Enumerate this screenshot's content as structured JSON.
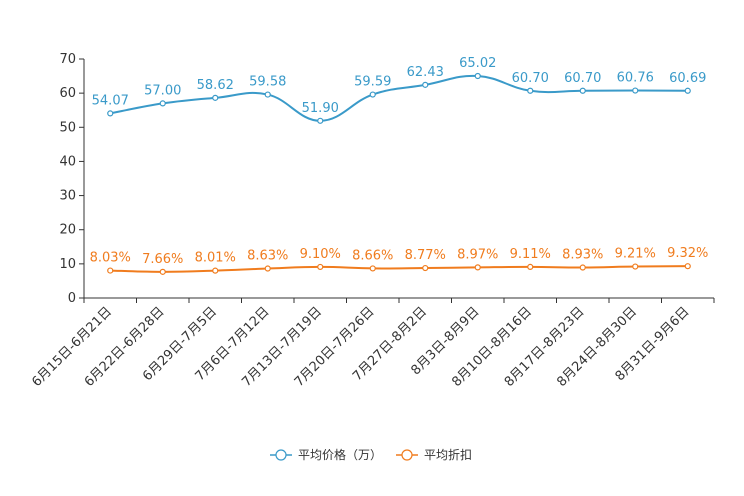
{
  "chart_data": {
    "type": "line",
    "title": "",
    "xlabel": "",
    "ylabel": "",
    "ylim": [
      0,
      70
    ],
    "yticks": [
      0,
      10,
      20,
      30,
      40,
      50,
      60,
      70
    ],
    "legend_position": "bottom-center",
    "grid": false,
    "categories": [
      "6月15日-6月21日",
      "6月22日-6月28日",
      "6月29日-7月5日",
      "7月6日-7月12日",
      "7月13日-7月19日",
      "7月20日-7月26日",
      "7月27日-8月2日",
      "8月3日-8月9日",
      "8月10日-8月16日",
      "8月17日-8月23日",
      "8月24日-8月30日",
      "8月31日-9月6日"
    ],
    "series": [
      {
        "name": "平均价格（万）",
        "color": "#3a9ac9",
        "values": [
          54.07,
          57.0,
          58.62,
          59.58,
          51.9,
          59.59,
          62.43,
          65.02,
          60.7,
          60.7,
          60.76,
          60.69
        ],
        "labels": [
          "54.07",
          "57.00",
          "58.62",
          "59.58",
          "51.90",
          "59.59",
          "62.43",
          "65.02",
          "60.70",
          "60.70",
          "60.76",
          "60.69"
        ]
      },
      {
        "name": "平均折扣",
        "color": "#f07c1e",
        "values": [
          8.03,
          7.66,
          8.01,
          8.63,
          9.1,
          8.66,
          8.77,
          8.97,
          9.11,
          8.93,
          9.21,
          9.32
        ],
        "labels": [
          "8.03%",
          "7.66%",
          "8.01%",
          "8.63%",
          "9.10%",
          "8.66%",
          "8.77%",
          "8.97%",
          "9.11%",
          "8.93%",
          "9.21%",
          "9.32%"
        ]
      }
    ]
  }
}
